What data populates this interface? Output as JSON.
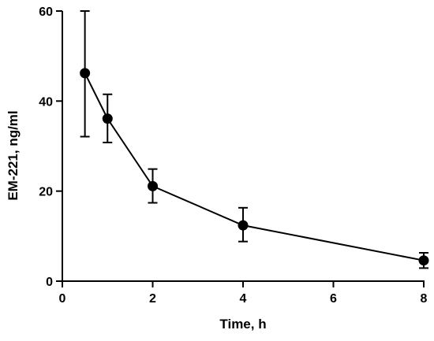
{
  "chart_data": {
    "type": "line",
    "title": "",
    "xlabel": "Time, h",
    "ylabel": "EM-221, ng/ml",
    "xlim": [
      0,
      8
    ],
    "ylim": [
      0,
      60
    ],
    "x_ticks": [
      0,
      2,
      4,
      6,
      8
    ],
    "x_tick_labels": [
      "0",
      "2",
      "4",
      "6",
      "8"
    ],
    "y_ticks": [
      0,
      20,
      40,
      60
    ],
    "y_tick_labels": [
      "0",
      "20",
      "40",
      "60"
    ],
    "grid": false,
    "legend": "none",
    "series": [
      {
        "x": [
          0.5,
          1,
          2,
          4,
          8
        ],
        "y": [
          46.2,
          36.1,
          21.1,
          12.4,
          4.6
        ],
        "err_low": [
          32.1,
          30.8,
          17.4,
          8.8,
          2.9
        ],
        "err_high": [
          60.0,
          41.5,
          24.9,
          16.3,
          6.3
        ],
        "marker": "filled-circle",
        "color": "#000000"
      }
    ]
  }
}
